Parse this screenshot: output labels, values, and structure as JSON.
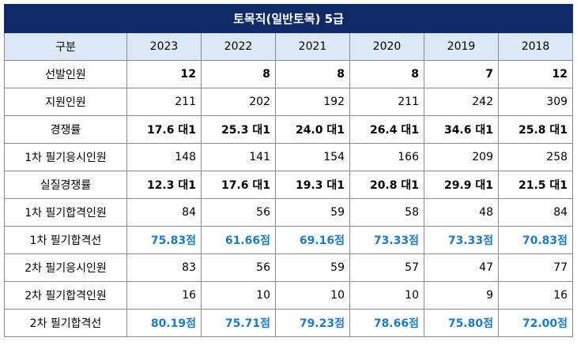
{
  "title": "토목직(일반토목) 5급",
  "header": {
    "label": "구분",
    "years": [
      "2023",
      "2022",
      "2021",
      "2020",
      "2019",
      "2018"
    ]
  },
  "rows": [
    {
      "label": "선발인원",
      "style": "bold",
      "values": [
        "12",
        "8",
        "8",
        "8",
        "7",
        "12"
      ]
    },
    {
      "label": "지원인원",
      "style": "normal",
      "values": [
        "211",
        "202",
        "192",
        "211",
        "242",
        "309"
      ]
    },
    {
      "label": "경쟁률",
      "style": "bold",
      "values": [
        "17.6 대1",
        "25.3 대1",
        "24.0 대1",
        "26.4 대1",
        "34.6 대1",
        "25.8 대1"
      ]
    },
    {
      "label": "1차 필기응시인원",
      "style": "normal",
      "values": [
        "148",
        "141",
        "154",
        "166",
        "209",
        "258"
      ]
    },
    {
      "label": "실질경쟁률",
      "style": "bold",
      "values": [
        "12.3 대1",
        "17.6 대1",
        "19.3 대1",
        "20.8 대1",
        "29.9 대1",
        "21.5 대1"
      ]
    },
    {
      "label": "1차 필기합격인원",
      "style": "normal",
      "values": [
        "84",
        "56",
        "59",
        "58",
        "48",
        "84"
      ]
    },
    {
      "label": "1차 필기합격선",
      "style": "blue",
      "values": [
        "75.83점",
        "61.66점",
        "69.16점",
        "73.33점",
        "73.33점",
        "70.83점"
      ]
    },
    {
      "label": "2차 필기응시인원",
      "style": "normal",
      "values": [
        "83",
        "56",
        "59",
        "57",
        "47",
        "77"
      ]
    },
    {
      "label": "2차 필기합격인원",
      "style": "normal",
      "values": [
        "16",
        "10",
        "10",
        "10",
        "9",
        "16"
      ]
    },
    {
      "label": "2차 필기합격선",
      "style": "blue",
      "values": [
        "80.19점",
        "75.71점",
        "79.23점",
        "78.66점",
        "75.80점",
        "72.00점"
      ]
    }
  ]
}
